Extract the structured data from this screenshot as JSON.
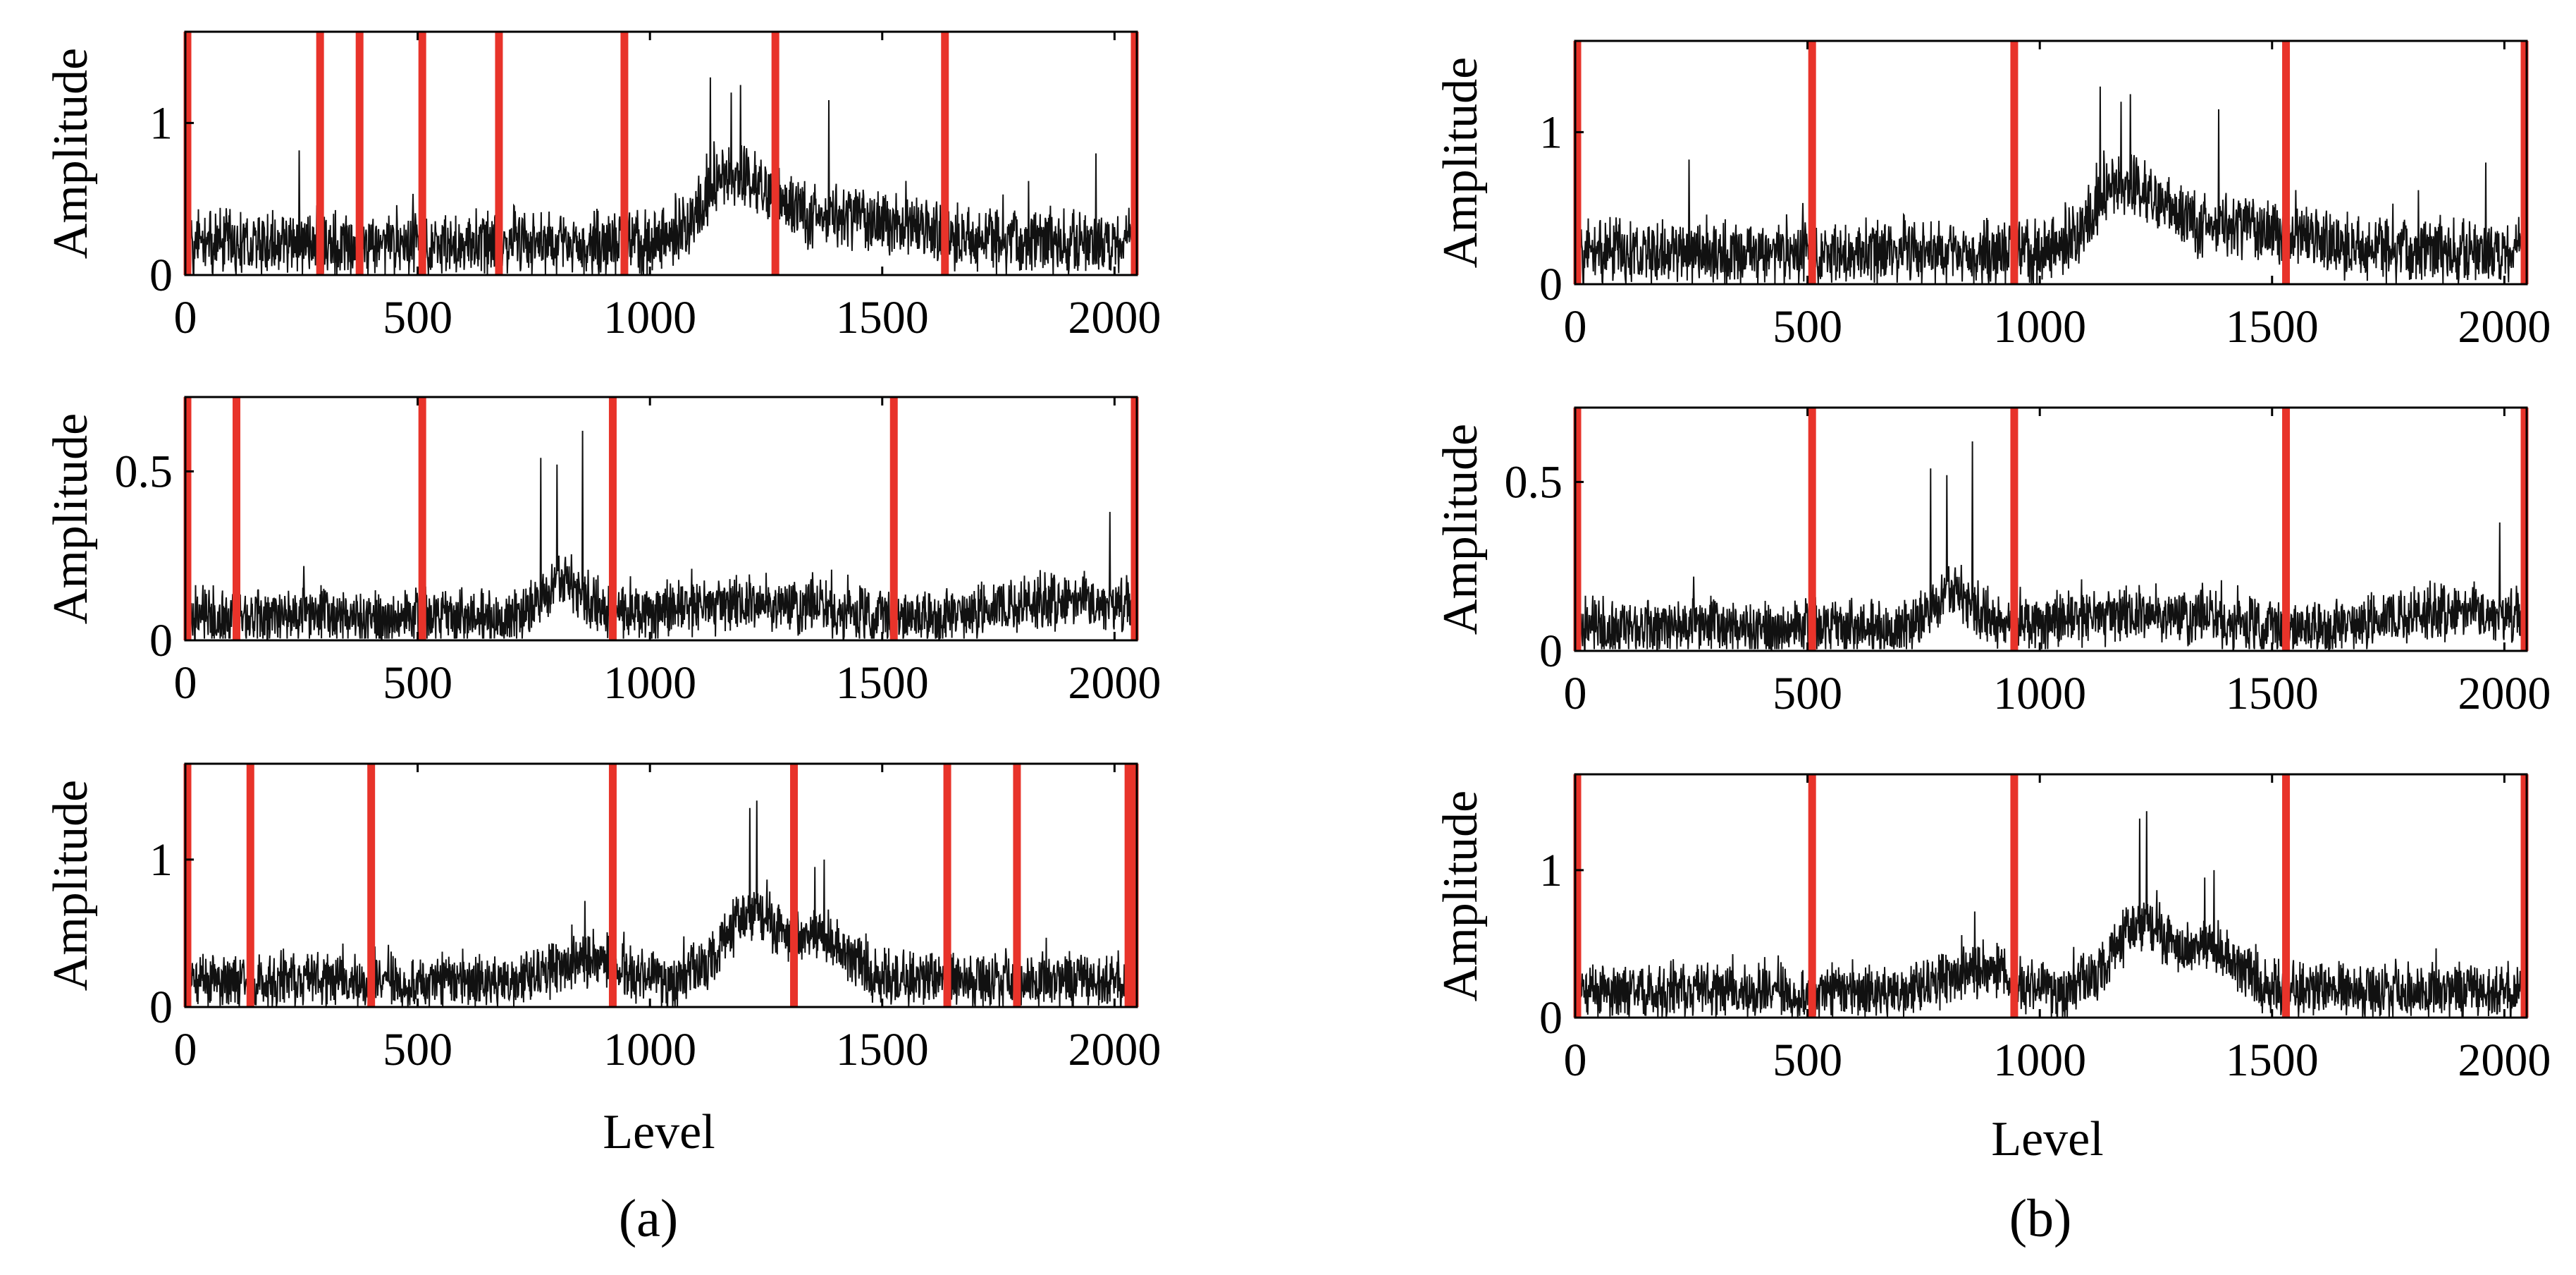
{
  "figure": {
    "captions": [
      "(a)",
      "(b)"
    ],
    "xlabel": "Level",
    "ylabel": "Amplitude"
  },
  "chart_data": [
    {
      "id": "a1",
      "type": "line",
      "title": "",
      "xlabel": "",
      "ylabel": "Amplitude",
      "xlim": [
        0,
        2048
      ],
      "ylim": [
        0,
        1.6
      ],
      "xticks": [
        0,
        500,
        1000,
        1500,
        2000
      ],
      "yticks": [
        0,
        1
      ],
      "boundaries": [
        0,
        290,
        375,
        510,
        675,
        945,
        1270,
        1635,
        2048
      ],
      "signal": {
        "base": 0.2,
        "noise": 0.18,
        "humps": [
          [
            1180,
            90,
            0.38
          ],
          [
            1380,
            220,
            0.2
          ]
        ],
        "spikes": [
          [
            245,
            0.82
          ],
          [
            1130,
            1.3
          ],
          [
            1175,
            1.2
          ],
          [
            1195,
            1.25
          ],
          [
            1385,
            1.15
          ],
          [
            1960,
            0.8
          ]
        ],
        "seed": 11
      }
    },
    {
      "id": "a2",
      "type": "line",
      "title": "",
      "xlabel": "",
      "ylabel": "Amplitude",
      "xlim": [
        0,
        2048
      ],
      "ylim": [
        0,
        0.72
      ],
      "xticks": [
        0,
        500,
        1000,
        1500,
        2000
      ],
      "yticks": [
        0,
        0.5
      ],
      "boundaries": [
        0,
        110,
        510,
        920,
        1525,
        2048
      ],
      "signal": {
        "base": 0.07,
        "noise": 0.07,
        "humps": [
          [
            820,
            60,
            0.1
          ],
          [
            1200,
            200,
            0.04
          ],
          [
            1900,
            180,
            0.05
          ]
        ],
        "spikes": [
          [
            765,
            0.54
          ],
          [
            800,
            0.52
          ],
          [
            855,
            0.62
          ],
          [
            1990,
            0.38
          ]
        ],
        "seed": 23
      }
    },
    {
      "id": "a3",
      "type": "line",
      "title": "",
      "xlabel": "Level",
      "ylabel": "Amplitude",
      "xlim": [
        0,
        2048
      ],
      "ylim": [
        0,
        1.65
      ],
      "xticks": [
        0,
        500,
        1000,
        1500,
        2000
      ],
      "yticks": [
        0,
        1
      ],
      "boundaries": [
        0,
        140,
        400,
        920,
        1310,
        1640,
        1790,
        2030,
        2048
      ],
      "signal": {
        "base": 0.18,
        "noise": 0.16,
        "humps": [
          [
            880,
            90,
            0.15
          ],
          [
            1215,
            80,
            0.45
          ],
          [
            1360,
            80,
            0.3
          ]
        ],
        "spikes": [
          [
            1215,
            1.35
          ],
          [
            1230,
            1.4
          ],
          [
            1355,
            0.95
          ],
          [
            1375,
            1.0
          ],
          [
            860,
            0.72
          ]
        ],
        "seed": 37
      }
    },
    {
      "id": "b1",
      "type": "line",
      "title": "",
      "xlabel": "",
      "ylabel": "Amplitude",
      "xlim": [
        0,
        2048
      ],
      "ylim": [
        0,
        1.6
      ],
      "xticks": [
        0,
        500,
        1000,
        1500,
        2000
      ],
      "yticks": [
        0,
        1
      ],
      "boundaries": [
        0,
        510,
        945,
        1530,
        2048
      ],
      "signal": {
        "base": 0.2,
        "noise": 0.18,
        "humps": [
          [
            1180,
            90,
            0.38
          ],
          [
            1380,
            220,
            0.2
          ]
        ],
        "spikes": [
          [
            245,
            0.82
          ],
          [
            1130,
            1.3
          ],
          [
            1175,
            1.2
          ],
          [
            1195,
            1.25
          ],
          [
            1385,
            1.15
          ],
          [
            1960,
            0.8
          ]
        ],
        "seed": 11
      }
    },
    {
      "id": "b2",
      "type": "line",
      "title": "",
      "xlabel": "",
      "ylabel": "Amplitude",
      "xlim": [
        0,
        2048
      ],
      "ylim": [
        0,
        0.72
      ],
      "xticks": [
        0,
        500,
        1000,
        1500,
        2000
      ],
      "yticks": [
        0,
        0.5
      ],
      "boundaries": [
        0,
        510,
        945,
        1530,
        2048
      ],
      "signal": {
        "base": 0.07,
        "noise": 0.07,
        "humps": [
          [
            820,
            60,
            0.1
          ],
          [
            1200,
            200,
            0.04
          ],
          [
            1900,
            180,
            0.05
          ]
        ],
        "spikes": [
          [
            765,
            0.54
          ],
          [
            800,
            0.52
          ],
          [
            855,
            0.62
          ],
          [
            1990,
            0.38
          ]
        ],
        "seed": 23
      }
    },
    {
      "id": "b3",
      "type": "line",
      "title": "",
      "xlabel": "Level",
      "ylabel": "Amplitude",
      "xlim": [
        0,
        2048
      ],
      "ylim": [
        0,
        1.65
      ],
      "xticks": [
        0,
        500,
        1000,
        1500,
        2000
      ],
      "yticks": [
        0,
        1
      ],
      "boundaries": [
        0,
        510,
        945,
        1530,
        2048
      ],
      "signal": {
        "base": 0.18,
        "noise": 0.16,
        "humps": [
          [
            880,
            90,
            0.15
          ],
          [
            1215,
            80,
            0.45
          ],
          [
            1360,
            80,
            0.3
          ]
        ],
        "spikes": [
          [
            1215,
            1.35
          ],
          [
            1230,
            1.4
          ],
          [
            1355,
            0.95
          ],
          [
            1375,
            1.0
          ],
          [
            860,
            0.72
          ]
        ],
        "seed": 37
      }
    }
  ]
}
